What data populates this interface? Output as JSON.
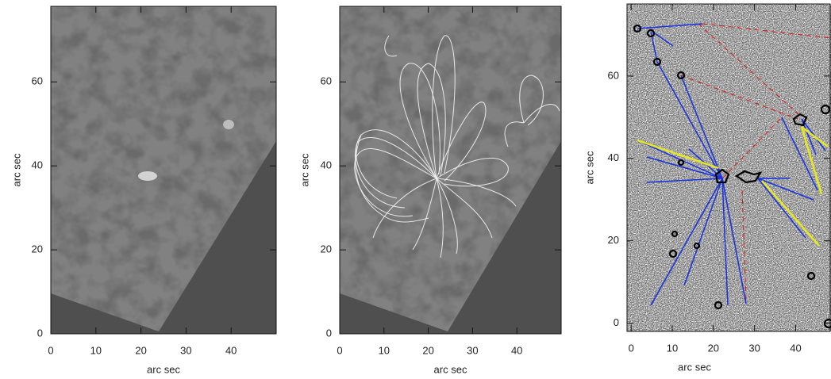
{
  "chart_data": [
    {
      "type": "image",
      "xlabel": "arc sec",
      "ylabel": "arc sec",
      "xlim": [
        0,
        50
      ],
      "ylim": [
        0,
        78
      ],
      "xticks": [
        0,
        10,
        20,
        30,
        40
      ],
      "yticks": [
        0,
        20,
        40,
        60
      ]
    },
    {
      "type": "image",
      "xlabel": "arc sec",
      "ylabel": "arc sec",
      "xlim": [
        0,
        50
      ],
      "ylim": [
        0,
        78
      ],
      "xticks": [
        0,
        10,
        20,
        30,
        40
      ],
      "yticks": [
        0,
        20,
        40,
        60
      ]
    },
    {
      "type": "image",
      "xlabel": "arc sec",
      "ylabel": "arc sec",
      "xlim": [
        -1,
        48.4
      ],
      "ylim": [
        -2,
        77.5
      ],
      "xticks": [
        0,
        10,
        20,
        30,
        40
      ],
      "yticks": [
        0,
        20,
        40,
        60
      ]
    }
  ]
}
